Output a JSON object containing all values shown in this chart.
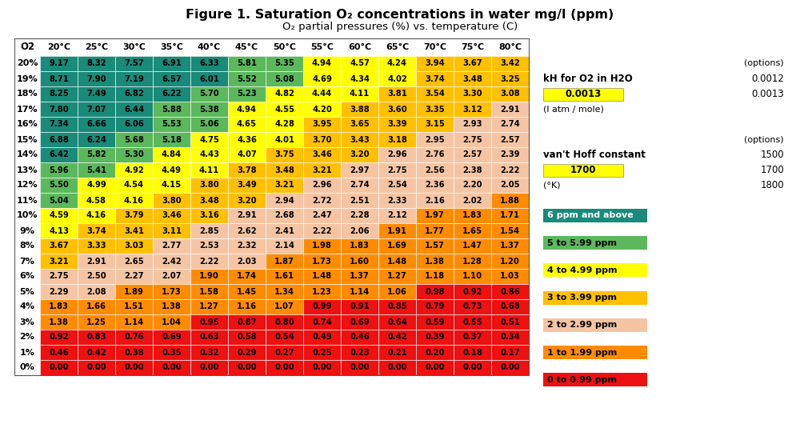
{
  "title_main": "Figure 1. Saturation O₂ concentrations in water mg/l (ppm)",
  "title_sub": "O₂ partial pressures (%) vs. temperature (C)",
  "col_headers": [
    "O2",
    "20°C",
    "25°C",
    "30°C",
    "35°C",
    "40°C",
    "45°C",
    "50°C",
    "55°C",
    "60°C",
    "65°C",
    "70°C",
    "75°C",
    "80°C"
  ],
  "row_labels": [
    "20%",
    "19%",
    "18%",
    "17%",
    "16%",
    "15%",
    "14%",
    "13%",
    "12%",
    "11%",
    "10%",
    "9%",
    "8%",
    "7%",
    "6%",
    "5%",
    "4%",
    "3%",
    "2%",
    "1%",
    "0%"
  ],
  "table_data": [
    [
      9.17,
      8.32,
      7.57,
      6.91,
      6.33,
      5.81,
      5.35,
      4.94,
      4.57,
      4.24,
      3.94,
      3.67,
      3.42
    ],
    [
      8.71,
      7.9,
      7.19,
      6.57,
      6.01,
      5.52,
      5.08,
      4.69,
      4.34,
      4.02,
      3.74,
      3.48,
      3.25
    ],
    [
      8.25,
      7.49,
      6.82,
      6.22,
      5.7,
      5.23,
      4.82,
      4.44,
      4.11,
      3.81,
      3.54,
      3.3,
      3.08
    ],
    [
      7.8,
      7.07,
      6.44,
      5.88,
      5.38,
      4.94,
      4.55,
      4.2,
      3.88,
      3.6,
      3.35,
      3.12,
      2.91
    ],
    [
      7.34,
      6.66,
      6.06,
      5.53,
      5.06,
      4.65,
      4.28,
      3.95,
      3.65,
      3.39,
      3.15,
      2.93,
      2.74
    ],
    [
      6.88,
      6.24,
      5.68,
      5.18,
      4.75,
      4.36,
      4.01,
      3.7,
      3.43,
      3.18,
      2.95,
      2.75,
      2.57
    ],
    [
      6.42,
      5.82,
      5.3,
      4.84,
      4.43,
      4.07,
      3.75,
      3.46,
      3.2,
      2.96,
      2.76,
      2.57,
      2.39
    ],
    [
      5.96,
      5.41,
      4.92,
      4.49,
      4.11,
      3.78,
      3.48,
      3.21,
      2.97,
      2.75,
      2.56,
      2.38,
      2.22
    ],
    [
      5.5,
      4.99,
      4.54,
      4.15,
      3.8,
      3.49,
      3.21,
      2.96,
      2.74,
      2.54,
      2.36,
      2.2,
      2.05
    ],
    [
      5.04,
      4.58,
      4.16,
      3.8,
      3.48,
      3.2,
      2.94,
      2.72,
      2.51,
      2.33,
      2.16,
      2.02,
      1.88
    ],
    [
      4.59,
      4.16,
      3.79,
      3.46,
      3.16,
      2.91,
      2.68,
      2.47,
      2.28,
      2.12,
      1.97,
      1.83,
      1.71
    ],
    [
      4.13,
      3.74,
      3.41,
      3.11,
      2.85,
      2.62,
      2.41,
      2.22,
      2.06,
      1.91,
      1.77,
      1.65,
      1.54
    ],
    [
      3.67,
      3.33,
      3.03,
      2.77,
      2.53,
      2.32,
      2.14,
      1.98,
      1.83,
      1.69,
      1.57,
      1.47,
      1.37
    ],
    [
      3.21,
      2.91,
      2.65,
      2.42,
      2.22,
      2.03,
      1.87,
      1.73,
      1.6,
      1.48,
      1.38,
      1.28,
      1.2
    ],
    [
      2.75,
      2.5,
      2.27,
      2.07,
      1.9,
      1.74,
      1.61,
      1.48,
      1.37,
      1.27,
      1.18,
      1.1,
      1.03
    ],
    [
      2.29,
      2.08,
      1.89,
      1.73,
      1.58,
      1.45,
      1.34,
      1.23,
      1.14,
      1.06,
      0.98,
      0.92,
      0.86
    ],
    [
      1.83,
      1.66,
      1.51,
      1.38,
      1.27,
      1.16,
      1.07,
      0.99,
      0.91,
      0.85,
      0.79,
      0.73,
      0.68
    ],
    [
      1.38,
      1.25,
      1.14,
      1.04,
      0.95,
      0.87,
      0.8,
      0.74,
      0.69,
      0.64,
      0.59,
      0.55,
      0.51
    ],
    [
      0.92,
      0.83,
      0.76,
      0.69,
      0.63,
      0.58,
      0.54,
      0.49,
      0.46,
      0.42,
      0.39,
      0.37,
      0.34
    ],
    [
      0.46,
      0.42,
      0.38,
      0.35,
      0.32,
      0.29,
      0.27,
      0.25,
      0.23,
      0.21,
      0.2,
      0.18,
      0.17
    ],
    [
      0.0,
      0.0,
      0.0,
      0.0,
      0.0,
      0.0,
      0.0,
      0.0,
      0.0,
      0.0,
      0.0,
      0.0,
      0.0
    ]
  ],
  "colors": {
    "teal": "#1a8a7a",
    "green": "#5cb85c",
    "yellow": "#ffff00",
    "gold": "#ffc000",
    "pink": "#ffb6c1",
    "orange": "#ff8c00",
    "red": "#ee1111"
  },
  "legend_items": [
    {
      "label": "6 ppm and above",
      "color": "#1a8a7a",
      "text_color": "#ffffff"
    },
    {
      "label": "5 to 5.99 ppm",
      "color": "#5cb85c",
      "text_color": "#000000"
    },
    {
      "label": "4 to 4.99 ppm",
      "color": "#ffff00",
      "text_color": "#000000"
    },
    {
      "label": "3 to 3.99 ppm",
      "color": "#ffc000",
      "text_color": "#000000"
    },
    {
      "label": "2 to 2.99 ppm",
      "color": "#f5c5a3",
      "text_color": "#000000"
    },
    {
      "label": "1 to 1.99 ppm",
      "color": "#ff8c00",
      "text_color": "#000000"
    },
    {
      "label": "0 to 0.99 ppm",
      "color": "#ee1111",
      "text_color": "#000000"
    }
  ],
  "right_panel": {
    "kH_label": "kH for O2 in H2O",
    "kH_opt": "(options)",
    "kH_val1": "0.0012",
    "kH_box": "0.0013",
    "kH_val2": "0.0013",
    "kH_unit": "(l atm / mole)",
    "vH_opt": "(options)",
    "vH_label": "van't Hoff constant",
    "vH_val1": "1500",
    "vH_box": "1700",
    "vH_val2": "1700",
    "vH_unit": "(°K)",
    "vH_val3": "1800"
  }
}
